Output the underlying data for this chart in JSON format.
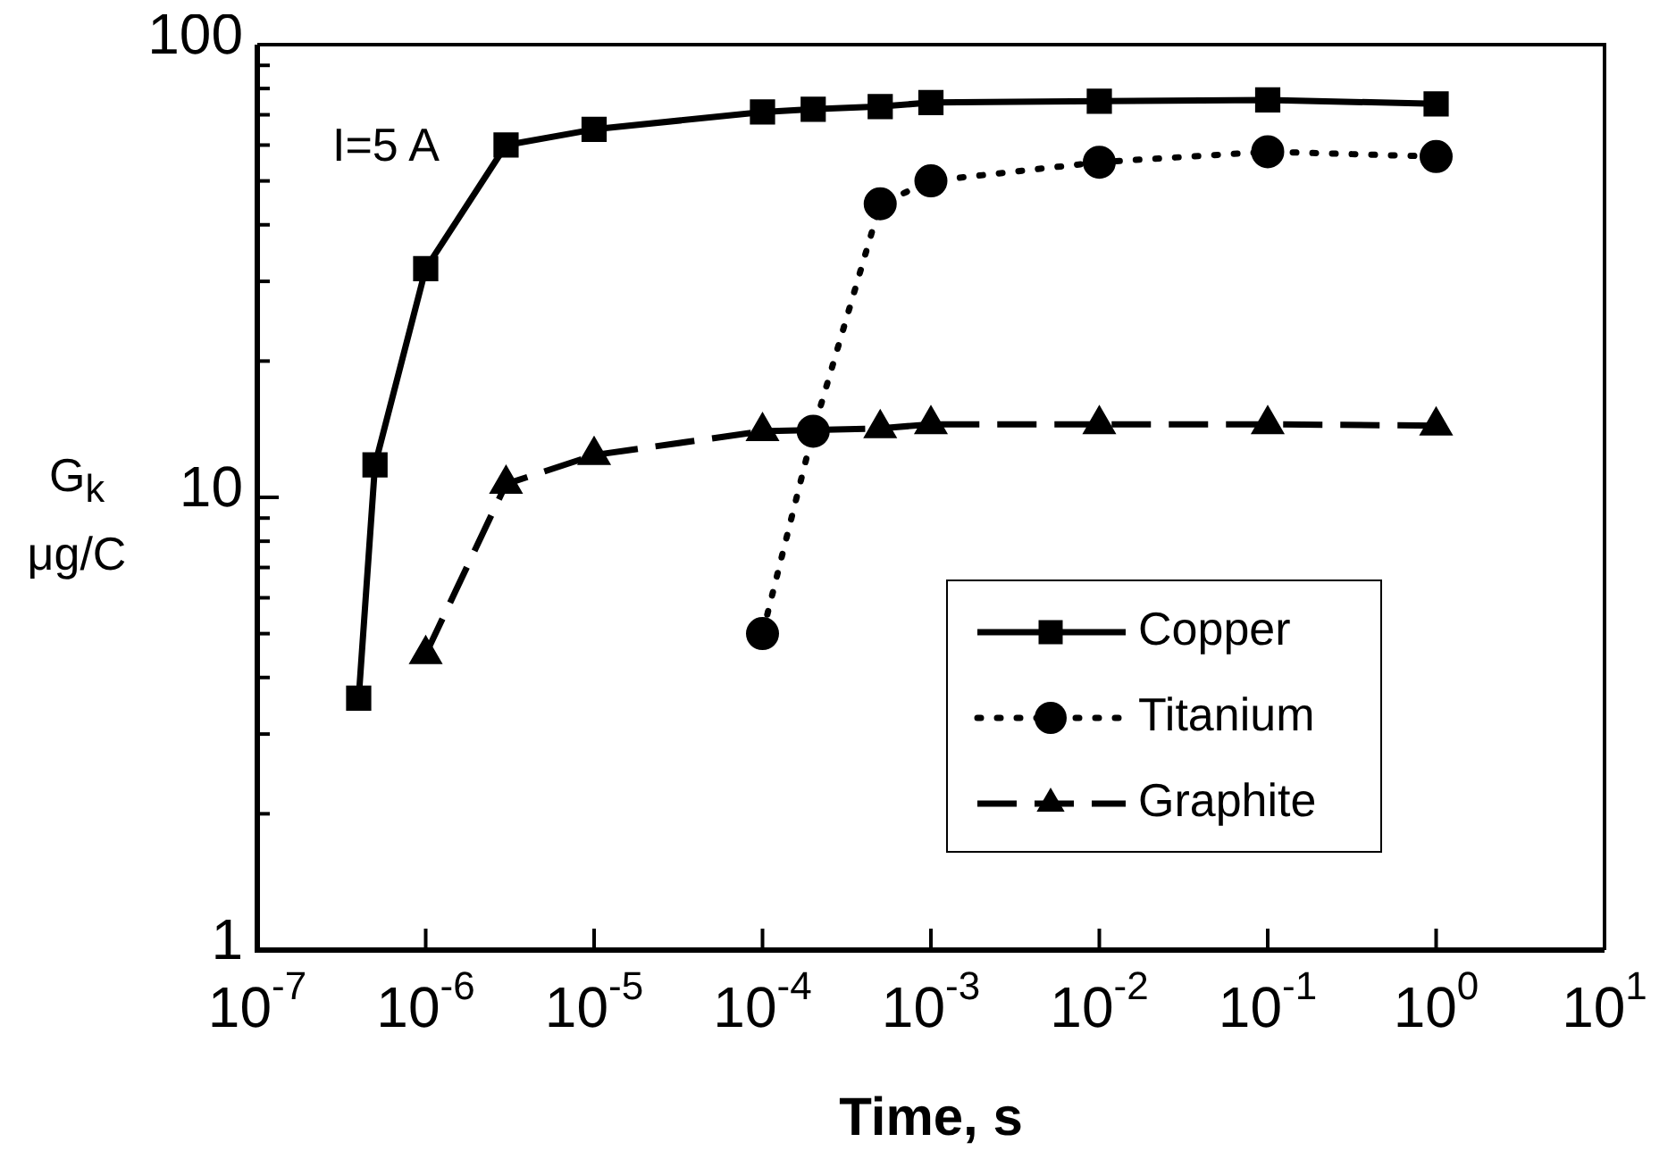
{
  "chart_data": {
    "type": "line",
    "xlabel": "Time, s",
    "ylabel": "G$_{k}$ μg/C",
    "annotations": [
      "I=5 A"
    ],
    "log": "xy",
    "grid": false,
    "legend": "right",
    "xlim": [
      1e-07,
      10
    ],
    "ylim": [
      1,
      100
    ],
    "xticks": [
      {
        "value": 1e-07,
        "label": "10$^{-7}$"
      },
      {
        "value": 1e-06,
        "label": "10$^{-6}$"
      },
      {
        "value": 1e-05,
        "label": "10$^{-5}$"
      },
      {
        "value": 0.0001,
        "label": "10$^{-4}$"
      },
      {
        "value": 0.001,
        "label": "10$^{-3}$"
      },
      {
        "value": 0.01,
        "label": "10$^{-2}$"
      },
      {
        "value": 0.1,
        "label": "10$^{-1}$"
      },
      {
        "value": 1,
        "label": "10$^{0}$"
      },
      {
        "value": 10,
        "label": "10$^{1}$"
      }
    ],
    "yticks": [
      1,
      {
        "value": 2,
        "label": null
      },
      {
        "value": 3,
        "label": null
      },
      {
        "value": 4,
        "label": null
      },
      {
        "value": 5,
        "label": null
      },
      {
        "value": 6,
        "label": null
      },
      {
        "value": 7,
        "label": null
      },
      {
        "value": 8,
        "label": null
      },
      {
        "value": 9,
        "label": null
      },
      10,
      {
        "value": 20,
        "label": null
      },
      {
        "value": 30,
        "label": null
      },
      {
        "value": 40,
        "label": null
      },
      {
        "value": 50,
        "label": null
      },
      {
        "value": 60,
        "label": null
      },
      {
        "value": 70,
        "label": null
      },
      {
        "value": 80,
        "label": null
      },
      {
        "value": 90,
        "label": null
      },
      100
    ],
    "series": [
      {
        "name": "Copper",
        "color": "#000000",
        "marker": "square",
        "line_style": "solid",
        "x": [
          4e-07,
          5e-07,
          1e-06,
          3e-06,
          1e-05,
          0.0001,
          0.0002,
          0.0005,
          0.001,
          0.01,
          0.1,
          1
        ],
        "values": [
          3.6,
          11.8,
          32,
          60,
          65,
          71,
          72,
          73,
          74.5,
          75,
          75.5,
          74
        ]
      },
      {
        "name": "Titanium",
        "color": "#000000",
        "marker": "circle",
        "line_style": "dotted",
        "x": [
          0.0001,
          0.0002,
          0.0005,
          0.001,
          0.01,
          0.1,
          1
        ],
        "values": [
          5.0,
          14,
          44.5,
          50,
          55,
          58,
          56.6
        ]
      },
      {
        "name": "Graphite",
        "color": "#000000",
        "marker": "triangle",
        "line_style": "dashed",
        "x": [
          1e-06,
          3e-06,
          1e-05,
          0.0001,
          0.0005,
          0.001,
          0.01,
          0.1,
          1
        ],
        "values": [
          4.5,
          10.7,
          12.4,
          14,
          14.2,
          14.5,
          14.5,
          14.5,
          14.4
        ]
      }
    ]
  }
}
